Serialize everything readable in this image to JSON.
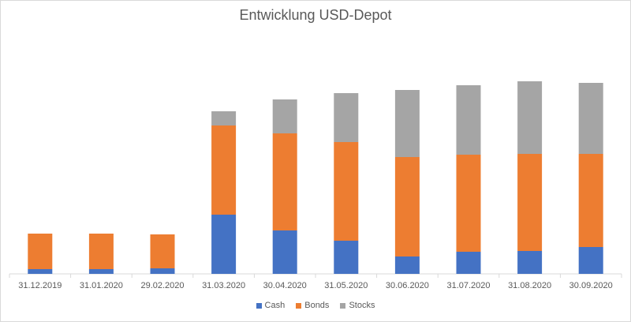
{
  "chart_data": {
    "type": "bar",
    "stacked": true,
    "title": "Entwicklung USD-Depot",
    "categories": [
      "31.12.2019",
      "31.01.2020",
      "29.02.2020",
      "31.03.2020",
      "30.04.2020",
      "31.05.2020",
      "30.06.2020",
      "31.07.2020",
      "31.08.2020",
      "30.09.2020"
    ],
    "series": [
      {
        "name": "Cash",
        "color": "#4472c4",
        "values": [
          6,
          6,
          7,
          75,
          55,
          42,
          22,
          28,
          29,
          34
        ]
      },
      {
        "name": "Bonds",
        "color": "#ed7d31",
        "values": [
          45,
          45,
          43,
          113,
          123,
          125,
          126,
          123,
          123,
          118
        ]
      },
      {
        "name": "Stocks",
        "color": "#a5a5a5",
        "values": [
          0,
          0,
          0,
          18,
          43,
          62,
          85,
          88,
          92,
          90
        ]
      }
    ],
    "ylim": [
      0,
      250
    ],
    "grid": false,
    "legend_position": "bottom"
  }
}
